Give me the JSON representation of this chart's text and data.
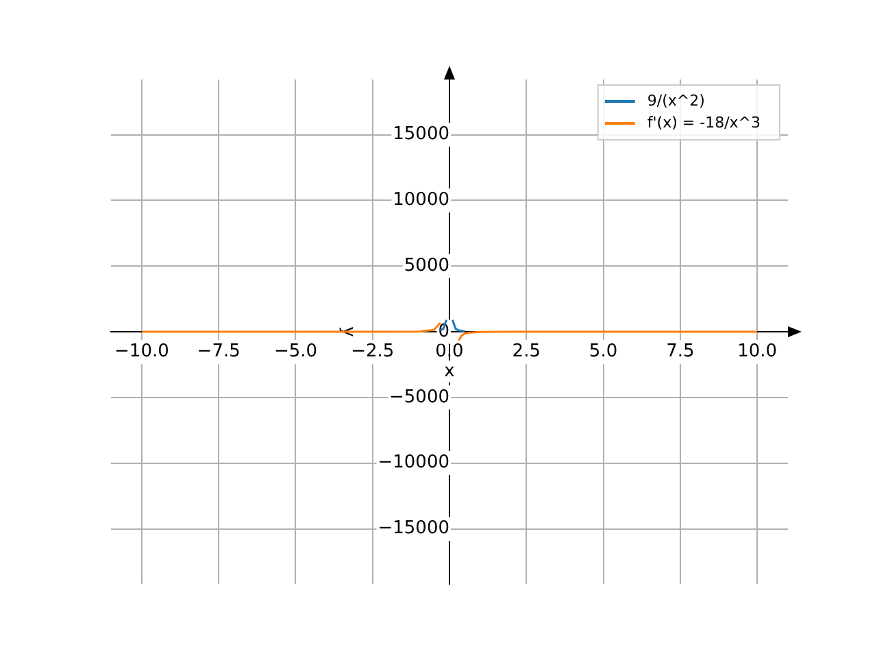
{
  "chart_data": {
    "type": "line",
    "xlabel": "x",
    "ylabel": "y",
    "xlim": [
      -11,
      11
    ],
    "ylim": [
      -19200,
      19200
    ],
    "xticks": [
      {
        "value": -10,
        "label": "−10.0"
      },
      {
        "value": -7.5,
        "label": "−7.5"
      },
      {
        "value": -5,
        "label": "−5.0"
      },
      {
        "value": -2.5,
        "label": "−2.5"
      },
      {
        "value": 0,
        "label": "0.0"
      },
      {
        "value": 2.5,
        "label": "2.5"
      },
      {
        "value": 5,
        "label": "5.0"
      },
      {
        "value": 7.5,
        "label": "7.5"
      },
      {
        "value": 10,
        "label": "10.0"
      }
    ],
    "yticks": [
      {
        "value": -15000,
        "label": "−15000"
      },
      {
        "value": -10000,
        "label": "−10000"
      },
      {
        "value": -5000,
        "label": "−5000"
      },
      0,
      5000,
      10000,
      15000
    ],
    "grid": true,
    "legend": "top right",
    "marker": "none",
    "line_style": "solid",
    "series": [
      {
        "name": "9/(x^2)",
        "color": "#1f77b4",
        "x": [
          -0.3,
          -0.2,
          -0.1,
          0,
          0.1,
          0.2,
          0.3,
          0.5
        ],
        "values": [
          100,
          225,
          900,
          null,
          900,
          225,
          100,
          36
        ]
      },
      {
        "name": "f'(x) = -18/x^3",
        "color": "#ff7f0e",
        "x": [
          -10,
          -5,
          -2,
          -1,
          -0.5,
          -0.3,
          0,
          0.3,
          0.4,
          0.5,
          0.6,
          1,
          2,
          5,
          10
        ],
        "values": [
          0,
          0,
          2,
          18,
          144,
          667,
          null,
          -667,
          -281,
          -144,
          -83,
          -18,
          -2,
          0,
          0
        ]
      }
    ]
  }
}
